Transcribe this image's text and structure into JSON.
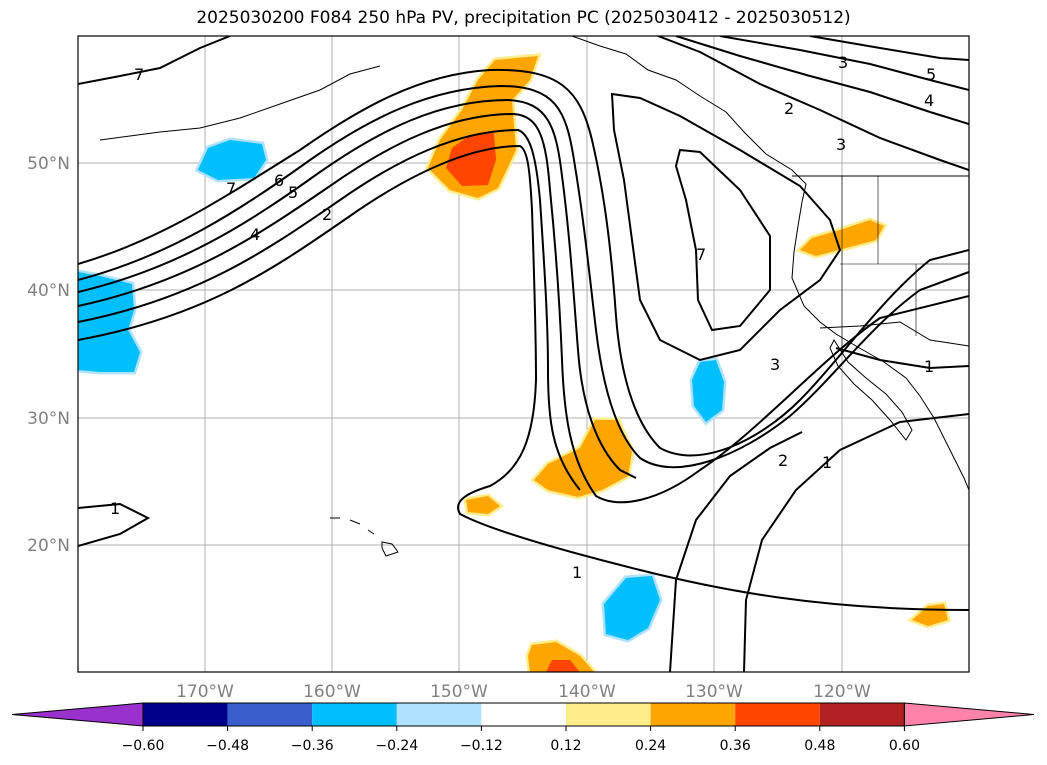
{
  "title": "2025030200 F084 250 hPa PV, precipitation PC (2025030412 - 2025030512)",
  "map": {
    "lon_labels": [
      "170°W",
      "160°W",
      "150°W",
      "140°W",
      "130°W",
      "120°W"
    ],
    "lat_labels": [
      "50°N",
      "40°N",
      "30°N",
      "20°N"
    ],
    "contour_labels": [
      "7",
      "7",
      "6",
      "5",
      "4",
      "2",
      "3",
      "5",
      "4",
      "2",
      "3",
      "7",
      "3",
      "1",
      "1",
      "2",
      "1",
      "1"
    ]
  },
  "colorbar": {
    "ticks": [
      "−0.60",
      "−0.48",
      "−0.36",
      "−0.24",
      "−0.12",
      "0.12",
      "0.24",
      "0.36",
      "0.48",
      "0.60"
    ],
    "colors": [
      "#9932cc",
      "#00008b",
      "#3a5fcd",
      "#00bfff",
      "#b0e2ff",
      "#ffffff",
      "#ffec8b",
      "#ffa500",
      "#ff4500",
      "#b22222",
      "#ff82ab"
    ]
  },
  "shading_colors": {
    "pos_light": "#ffec8b",
    "pos_mid": "#ffa500",
    "pos_strong": "#ff4500",
    "neg_light": "#b0e2ff",
    "neg_mid": "#00bfff",
    "neg_strong": "#3a5fcd"
  }
}
